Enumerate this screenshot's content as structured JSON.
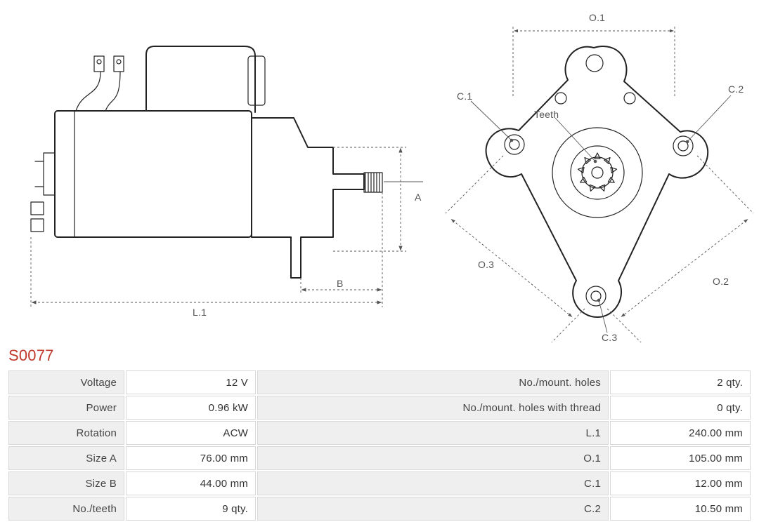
{
  "part_number": "S0077",
  "colors": {
    "title": "#c0392b",
    "outline": "#222222",
    "dim": "#555555",
    "table_header_bg": "#efefef",
    "table_cell_bg": "#ffffff",
    "table_border": "#d8d8d8",
    "background": "#ffffff"
  },
  "diagrams": {
    "side_view": {
      "type": "technical-line-drawing",
      "description": "Starter motor side profile",
      "dimension_labels": {
        "A": "A",
        "B": "B",
        "L1": "L.1"
      }
    },
    "front_view": {
      "type": "technical-line-drawing",
      "description": "Mounting flange front view",
      "dimension_labels": {
        "O1": "O.1",
        "O2": "O.2",
        "O3": "O.3",
        "C1": "C.1",
        "C2": "C.2",
        "C3": "C.3",
        "Teeth": "Teeth"
      }
    }
  },
  "spec_rows": [
    {
      "k1": "Voltage",
      "v1": "12 V",
      "k2": "No./mount. holes",
      "v2": "2 qty."
    },
    {
      "k1": "Power",
      "v1": "0.96 kW",
      "k2": "No./mount. holes with thread",
      "v2": "0 qty."
    },
    {
      "k1": "Rotation",
      "v1": "ACW",
      "k2": "L.1",
      "v2": "240.00 mm"
    },
    {
      "k1": "Size A",
      "v1": "76.00 mm",
      "k2": "O.1",
      "v2": "105.00 mm"
    },
    {
      "k1": "Size B",
      "v1": "44.00 mm",
      "k2": "C.1",
      "v2": "12.00 mm"
    },
    {
      "k1": "No./teeth",
      "v1": "9 qty.",
      "k2": "C.2",
      "v2": "10.50 mm"
    }
  ]
}
